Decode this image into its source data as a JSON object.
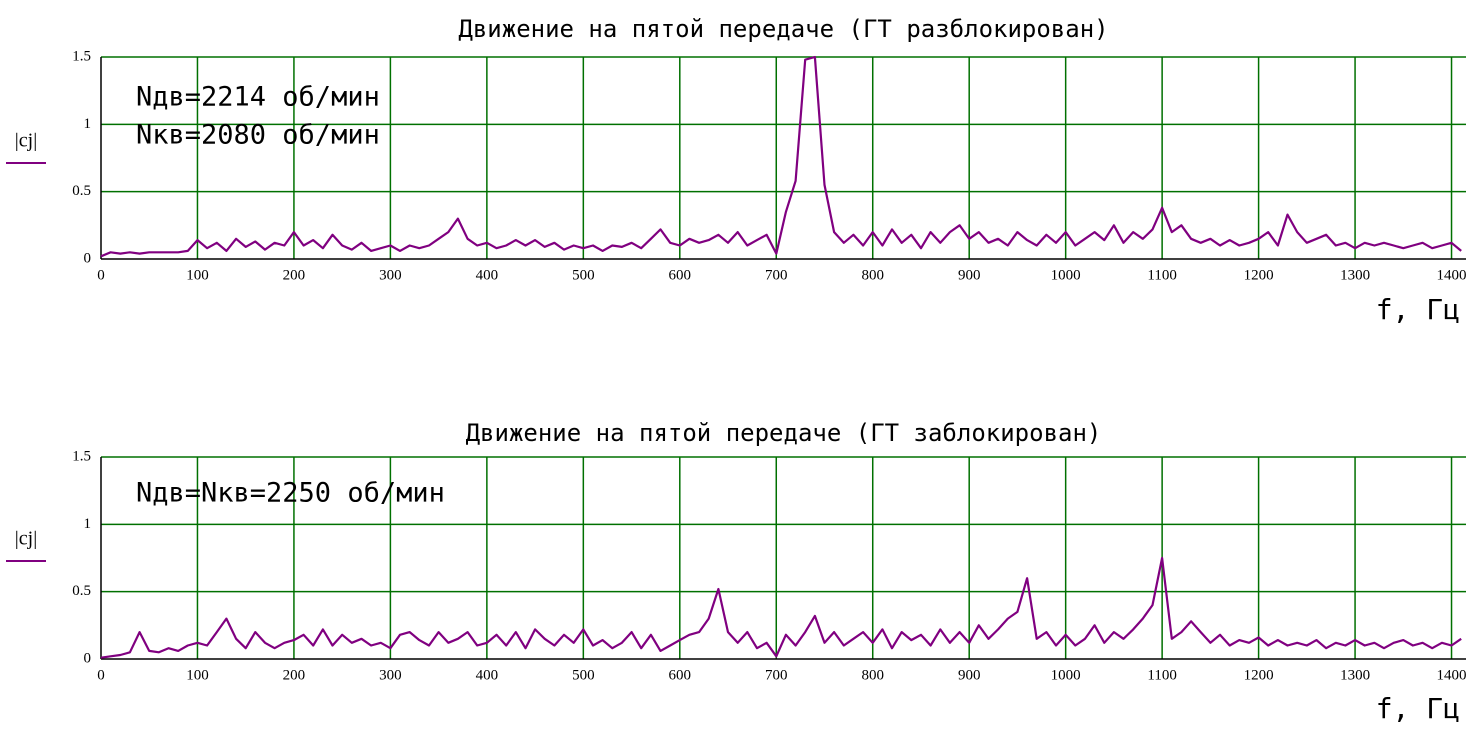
{
  "chart_data": [
    {
      "type": "line",
      "title": "Движение на пятой передаче (ГТ разблокирован)",
      "annotations": [
        "Nдв=2214 об/мин",
        "Nкв=2080 об/мин"
      ],
      "xlabel": "f, Гц",
      "ylabel": "|cj|",
      "color": "#800080",
      "grid": true,
      "grid_color": "#007000",
      "xlim": [
        0,
        1415
      ],
      "ylim": [
        0,
        1.5
      ],
      "xticks": [
        0,
        100,
        200,
        300,
        400,
        500,
        600,
        700,
        800,
        900,
        1000,
        1100,
        1200,
        1300,
        1400
      ],
      "yticks": [
        0,
        0.5,
        1,
        1.5
      ],
      "x": [
        0,
        10,
        20,
        30,
        40,
        50,
        60,
        70,
        80,
        90,
        100,
        110,
        120,
        130,
        140,
        150,
        160,
        170,
        180,
        190,
        200,
        210,
        220,
        230,
        240,
        250,
        260,
        270,
        280,
        290,
        300,
        310,
        320,
        330,
        340,
        350,
        360,
        370,
        380,
        390,
        400,
        410,
        420,
        430,
        440,
        450,
        460,
        470,
        480,
        490,
        500,
        510,
        520,
        530,
        540,
        550,
        560,
        570,
        580,
        590,
        600,
        610,
        620,
        630,
        640,
        650,
        660,
        670,
        680,
        690,
        700,
        710,
        720,
        730,
        740,
        750,
        760,
        770,
        780,
        790,
        800,
        810,
        820,
        830,
        840,
        850,
        860,
        870,
        880,
        890,
        900,
        910,
        920,
        930,
        940,
        950,
        960,
        970,
        980,
        990,
        1000,
        1010,
        1020,
        1030,
        1040,
        1050,
        1060,
        1070,
        1080,
        1090,
        1100,
        1110,
        1120,
        1130,
        1140,
        1150,
        1160,
        1170,
        1180,
        1190,
        1200,
        1210,
        1220,
        1230,
        1240,
        1250,
        1260,
        1270,
        1280,
        1290,
        1300,
        1310,
        1320,
        1330,
        1340,
        1350,
        1360,
        1370,
        1380,
        1390,
        1400,
        1410
      ],
      "values": [
        0.02,
        0.05,
        0.04,
        0.05,
        0.04,
        0.05,
        0.05,
        0.05,
        0.05,
        0.06,
        0.14,
        0.08,
        0.12,
        0.06,
        0.15,
        0.09,
        0.13,
        0.07,
        0.12,
        0.1,
        0.2,
        0.1,
        0.14,
        0.08,
        0.18,
        0.1,
        0.07,
        0.12,
        0.06,
        0.08,
        0.1,
        0.06,
        0.1,
        0.08,
        0.1,
        0.15,
        0.2,
        0.3,
        0.15,
        0.1,
        0.12,
        0.08,
        0.1,
        0.14,
        0.1,
        0.14,
        0.09,
        0.12,
        0.07,
        0.1,
        0.08,
        0.1,
        0.06,
        0.1,
        0.09,
        0.12,
        0.08,
        0.15,
        0.22,
        0.12,
        0.1,
        0.15,
        0.12,
        0.14,
        0.18,
        0.12,
        0.2,
        0.1,
        0.14,
        0.18,
        0.04,
        0.35,
        0.58,
        1.48,
        1.5,
        0.55,
        0.2,
        0.12,
        0.18,
        0.1,
        0.2,
        0.1,
        0.22,
        0.12,
        0.18,
        0.08,
        0.2,
        0.12,
        0.2,
        0.25,
        0.15,
        0.2,
        0.12,
        0.15,
        0.1,
        0.2,
        0.14,
        0.1,
        0.18,
        0.12,
        0.2,
        0.1,
        0.15,
        0.2,
        0.14,
        0.25,
        0.12,
        0.2,
        0.15,
        0.22,
        0.38,
        0.2,
        0.25,
        0.15,
        0.12,
        0.15,
        0.1,
        0.14,
        0.1,
        0.12,
        0.15,
        0.2,
        0.1,
        0.33,
        0.2,
        0.12,
        0.15,
        0.18,
        0.1,
        0.12,
        0.08,
        0.12,
        0.1,
        0.12,
        0.1,
        0.08,
        0.1,
        0.12,
        0.08,
        0.1,
        0.12,
        0.06
      ]
    },
    {
      "type": "line",
      "title": "Движение на пятой передаче (ГТ заблокирован)",
      "annotations": [
        "Nдв=Nкв=2250 об/мин"
      ],
      "xlabel": "f, Гц",
      "ylabel": "|cj|",
      "color": "#800080",
      "grid": true,
      "grid_color": "#007000",
      "xlim": [
        0,
        1415
      ],
      "ylim": [
        0,
        1.5
      ],
      "xticks": [
        0,
        100,
        200,
        300,
        400,
        500,
        600,
        700,
        800,
        900,
        1000,
        1100,
        1200,
        1300,
        1400
      ],
      "yticks": [
        0,
        0.5,
        1,
        1.5
      ],
      "x": [
        0,
        10,
        20,
        30,
        40,
        50,
        60,
        70,
        80,
        90,
        100,
        110,
        120,
        130,
        140,
        150,
        160,
        170,
        180,
        190,
        200,
        210,
        220,
        230,
        240,
        250,
        260,
        270,
        280,
        290,
        300,
        310,
        320,
        330,
        340,
        350,
        360,
        370,
        380,
        390,
        400,
        410,
        420,
        430,
        440,
        450,
        460,
        470,
        480,
        490,
        500,
        510,
        520,
        530,
        540,
        550,
        560,
        570,
        580,
        590,
        600,
        610,
        620,
        630,
        640,
        650,
        660,
        670,
        680,
        690,
        700,
        710,
        720,
        730,
        740,
        750,
        760,
        770,
        780,
        790,
        800,
        810,
        820,
        830,
        840,
        850,
        860,
        870,
        880,
        890,
        900,
        910,
        920,
        930,
        940,
        950,
        960,
        970,
        980,
        990,
        1000,
        1010,
        1020,
        1030,
        1040,
        1050,
        1060,
        1070,
        1080,
        1090,
        1100,
        1110,
        1120,
        1130,
        1140,
        1150,
        1160,
        1170,
        1180,
        1190,
        1200,
        1210,
        1220,
        1230,
        1240,
        1250,
        1260,
        1270,
        1280,
        1290,
        1300,
        1310,
        1320,
        1330,
        1340,
        1350,
        1360,
        1370,
        1380,
        1390,
        1400,
        1410
      ],
      "values": [
        0.01,
        0.02,
        0.03,
        0.05,
        0.2,
        0.06,
        0.05,
        0.08,
        0.06,
        0.1,
        0.12,
        0.1,
        0.2,
        0.3,
        0.15,
        0.08,
        0.2,
        0.12,
        0.08,
        0.12,
        0.14,
        0.18,
        0.1,
        0.22,
        0.1,
        0.18,
        0.12,
        0.15,
        0.1,
        0.12,
        0.08,
        0.18,
        0.2,
        0.14,
        0.1,
        0.2,
        0.12,
        0.15,
        0.2,
        0.1,
        0.12,
        0.18,
        0.1,
        0.2,
        0.08,
        0.22,
        0.15,
        0.1,
        0.18,
        0.12,
        0.22,
        0.1,
        0.14,
        0.08,
        0.12,
        0.2,
        0.08,
        0.18,
        0.06,
        0.1,
        0.14,
        0.18,
        0.2,
        0.3,
        0.52,
        0.2,
        0.12,
        0.2,
        0.08,
        0.12,
        0.02,
        0.18,
        0.1,
        0.2,
        0.32,
        0.12,
        0.2,
        0.1,
        0.15,
        0.2,
        0.12,
        0.22,
        0.08,
        0.2,
        0.14,
        0.18,
        0.1,
        0.22,
        0.12,
        0.2,
        0.12,
        0.25,
        0.15,
        0.22,
        0.3,
        0.35,
        0.6,
        0.15,
        0.2,
        0.1,
        0.18,
        0.1,
        0.15,
        0.25,
        0.12,
        0.2,
        0.15,
        0.22,
        0.3,
        0.4,
        0.75,
        0.15,
        0.2,
        0.28,
        0.2,
        0.12,
        0.18,
        0.1,
        0.14,
        0.12,
        0.16,
        0.1,
        0.14,
        0.1,
        0.12,
        0.1,
        0.14,
        0.08,
        0.12,
        0.1,
        0.14,
        0.1,
        0.12,
        0.08,
        0.12,
        0.14,
        0.1,
        0.12,
        0.08,
        0.12,
        0.1,
        0.15
      ]
    }
  ]
}
